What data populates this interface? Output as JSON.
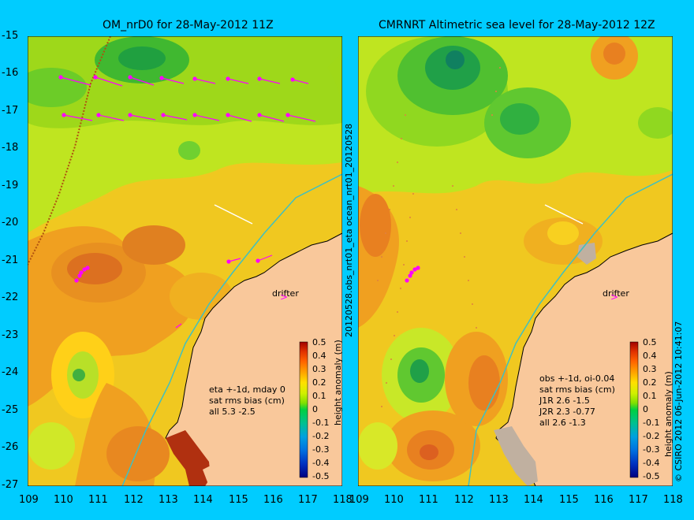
{
  "titles": {
    "left": "OM_nrD0 for 28-May-2012 11Z",
    "right": "CMRNRT Altimetric sea level  for 28-May-2012 12Z"
  },
  "axes": {
    "lat_ticks": [
      "-15",
      "-16",
      "-17",
      "-18",
      "-19",
      "-20",
      "-21",
      "-22",
      "-23",
      "-24",
      "-25",
      "-26",
      "-27"
    ],
    "lon_ticks_left": [
      "109",
      "110",
      "111",
      "112",
      "113",
      "114",
      "115",
      "116",
      "117",
      "118"
    ],
    "lon_ticks_right": [
      "109",
      "110",
      "111",
      "112",
      "113",
      "114",
      "115",
      "116",
      "117",
      "118"
    ]
  },
  "side_labels": {
    "middle": "20120528.obs_nrt01_eta    ocean_nrt01_20120528",
    "right": "© CSIRO 2012   06-Jun-2012 10:41:07"
  },
  "annotations": {
    "left_drifter": "drifter",
    "right_drifter": "drifter",
    "left_stats": [
      "eta +-1d, mday 0",
      "sat rms bias (cm)",
      "all 5.3 -2.5"
    ],
    "right_stats": [
      "obs +-1d, oi-0.04",
      "sat rms bias (cm)",
      "J1R   2.6 -1.5",
      "J2R   2.3 -0.77",
      "all 2.6 -1.3"
    ]
  },
  "colorbar": {
    "label": "height anomaly (m)",
    "ticks": [
      "0.5",
      "0.4",
      "0.3",
      "0.2",
      "0.1",
      "0",
      "-0.1",
      "-0.2",
      "-0.3",
      "-0.4",
      "-0.5"
    ],
    "colors": [
      "#000080",
      "#0030c0",
      "#0070e0",
      "#00a0e0",
      "#00c090",
      "#00d040",
      "#80e000",
      "#d0f000",
      "#ffe000",
      "#ffa000",
      "#ff6000",
      "#e03000",
      "#a00000"
    ]
  },
  "colors": {
    "background": "#00ccff",
    "land": "#f9c89b",
    "ocean_base": "#f0cc10",
    "arrow": "#ff00ff"
  }
}
